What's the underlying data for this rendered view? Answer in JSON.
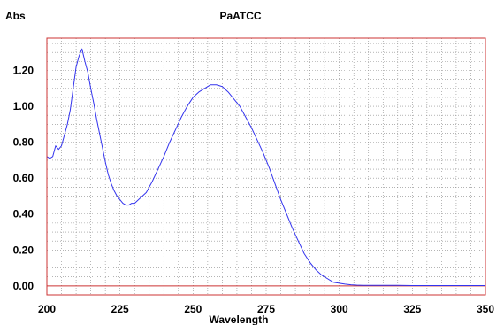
{
  "chart_data": {
    "type": "line",
    "title": "PaATCC",
    "xlabel": "Wavelength",
    "ylabel": "Abs",
    "xlim": [
      200,
      350
    ],
    "ylim": [
      -0.05,
      1.38
    ],
    "grid": true,
    "x_ticks": [
      200,
      225,
      250,
      275,
      300,
      325,
      350
    ],
    "x_tick_labels": [
      "200",
      "225",
      "250",
      "275",
      "300",
      "325",
      "350"
    ],
    "y_ticks": [
      0.0,
      0.2,
      0.4,
      0.6,
      0.8,
      1.0,
      1.2
    ],
    "y_tick_labels": [
      "0.00",
      "0.20",
      "0.40",
      "0.60",
      "0.80",
      "1.00",
      "1.20"
    ],
    "series": [
      {
        "color": "#3333ee",
        "x": [
          200,
          201,
          202,
          203,
          204,
          205,
          206,
          207,
          208,
          209,
          210,
          211,
          212,
          213,
          214,
          215,
          216,
          217,
          218,
          219,
          220,
          221,
          222,
          223,
          224,
          225,
          226,
          227,
          228,
          229,
          230,
          232,
          234,
          236,
          238,
          240,
          242,
          244,
          246,
          248,
          250,
          252,
          254,
          256,
          257,
          258,
          260,
          262,
          264,
          266,
          268,
          270,
          272,
          274,
          276,
          278,
          280,
          282,
          284,
          286,
          288,
          290,
          292,
          294,
          296,
          298,
          300,
          302,
          304,
          306,
          308,
          310,
          315,
          320,
          325,
          330,
          335,
          340,
          345,
          350
        ],
        "y": [
          0.72,
          0.71,
          0.72,
          0.78,
          0.76,
          0.78,
          0.84,
          0.9,
          0.98,
          1.1,
          1.22,
          1.28,
          1.32,
          1.25,
          1.19,
          1.1,
          1.02,
          0.93,
          0.85,
          0.77,
          0.69,
          0.62,
          0.57,
          0.53,
          0.5,
          0.48,
          0.46,
          0.45,
          0.45,
          0.46,
          0.46,
          0.49,
          0.52,
          0.58,
          0.65,
          0.72,
          0.8,
          0.87,
          0.94,
          1.0,
          1.05,
          1.08,
          1.1,
          1.12,
          1.12,
          1.12,
          1.11,
          1.08,
          1.04,
          1.0,
          0.94,
          0.88,
          0.81,
          0.74,
          0.66,
          0.57,
          0.48,
          0.4,
          0.32,
          0.25,
          0.18,
          0.13,
          0.09,
          0.06,
          0.04,
          0.02,
          0.015,
          0.01,
          0.006,
          0.004,
          0.003,
          0.003,
          0.003,
          0.003,
          0.002,
          0.002,
          0.002,
          0.002,
          0.002,
          0.002
        ]
      }
    ]
  },
  "colors": {
    "frame": "#cc3333",
    "zero_line": "#cc3333",
    "grid": "#888888",
    "trace": "#3333ee"
  }
}
